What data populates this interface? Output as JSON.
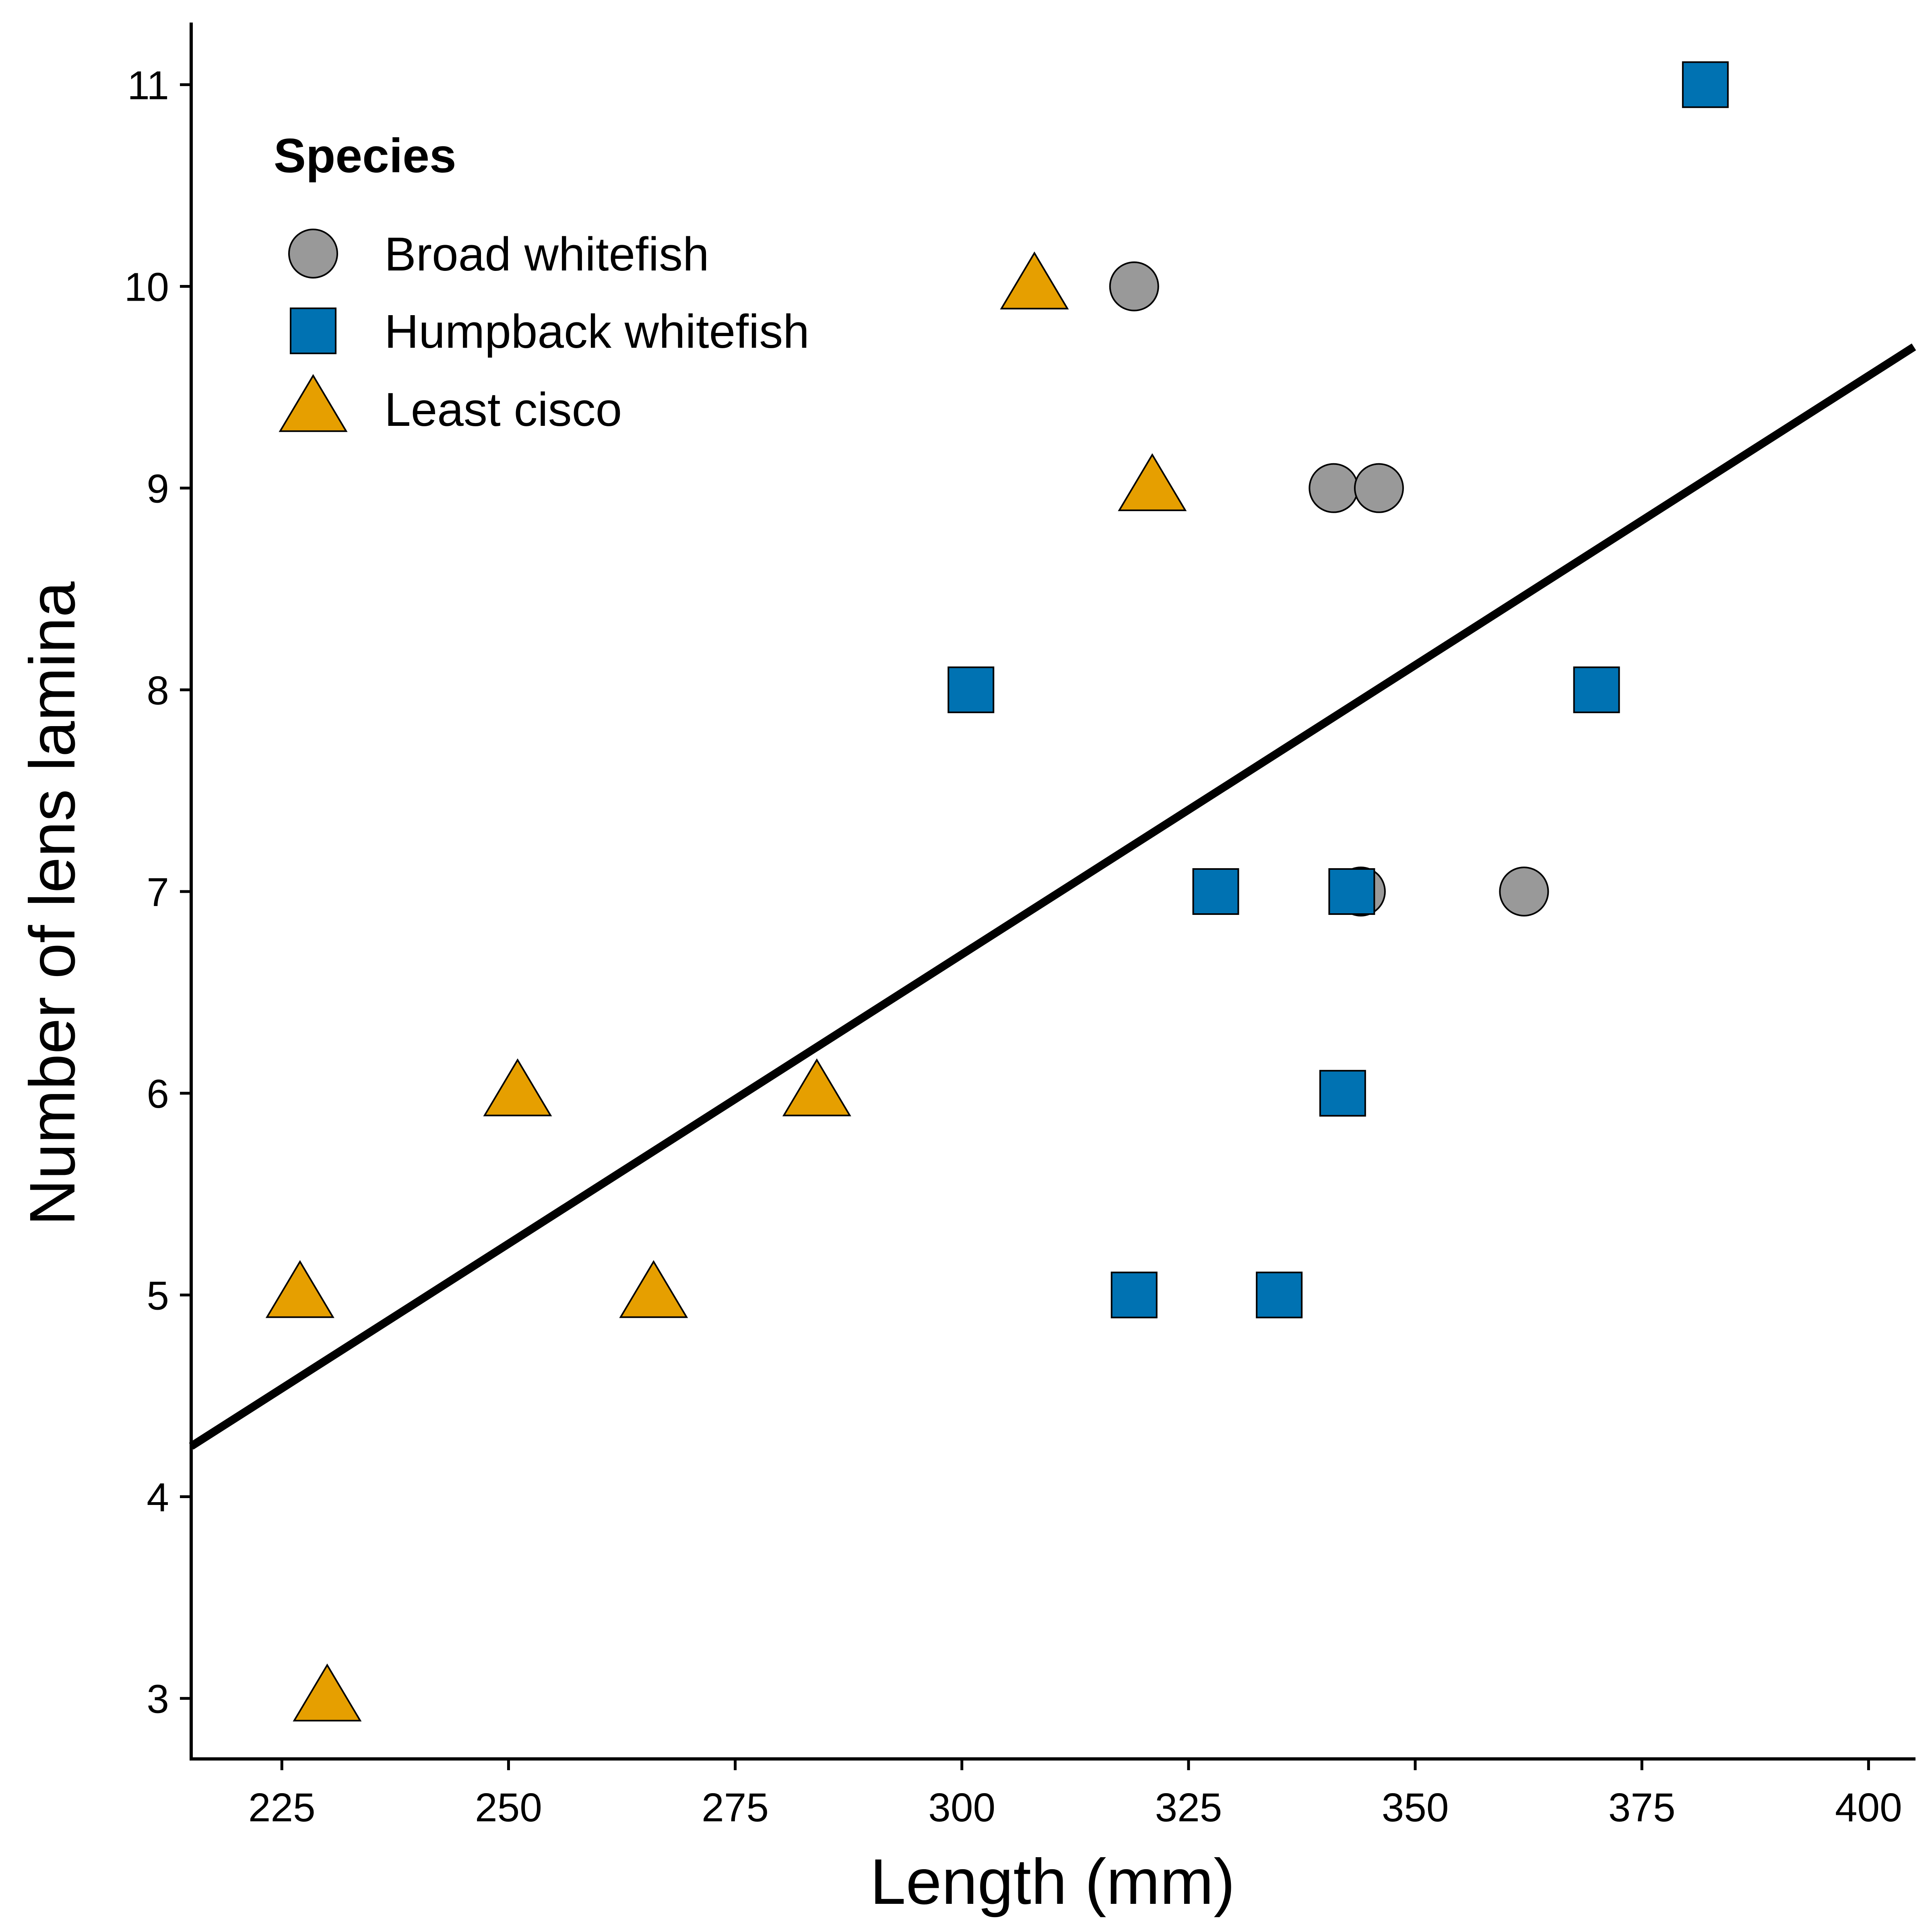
{
  "chart_data": {
    "type": "scatter",
    "title": "",
    "xlabel": "Length (mm)",
    "ylabel": "Number of lens lamina",
    "xlim": [
      215,
      405
    ],
    "ylim": [
      2.7,
      11.3
    ],
    "xticks": [
      225,
      250,
      275,
      300,
      325,
      350,
      375,
      400
    ],
    "yticks": [
      3,
      4,
      5,
      6,
      7,
      8,
      9,
      10,
      11
    ],
    "grid": false,
    "legend": {
      "title": "Species",
      "position": "top-left"
    },
    "series": [
      {
        "name": "Broad whitefish",
        "marker": "circle",
        "color": "#999999",
        "points": [
          {
            "x": 319,
            "y": 10
          },
          {
            "x": 341,
            "y": 9
          },
          {
            "x": 346,
            "y": 9
          },
          {
            "x": 344,
            "y": 7
          },
          {
            "x": 362,
            "y": 7
          }
        ]
      },
      {
        "name": "Humpback whitefish",
        "marker": "square",
        "color": "#0072B2",
        "points": [
          {
            "x": 382,
            "y": 11
          },
          {
            "x": 301,
            "y": 8
          },
          {
            "x": 370,
            "y": 8
          },
          {
            "x": 328,
            "y": 7
          },
          {
            "x": 343,
            "y": 7
          },
          {
            "x": 342,
            "y": 6
          },
          {
            "x": 319,
            "y": 5
          },
          {
            "x": 335,
            "y": 5
          }
        ]
      },
      {
        "name": "Least cisco",
        "marker": "triangle",
        "color": "#E69F00",
        "points": [
          {
            "x": 308,
            "y": 10
          },
          {
            "x": 321,
            "y": 9
          },
          {
            "x": 251,
            "y": 6
          },
          {
            "x": 284,
            "y": 6
          },
          {
            "x": 227,
            "y": 5
          },
          {
            "x": 266,
            "y": 5
          },
          {
            "x": 230,
            "y": 3
          }
        ]
      }
    ],
    "fit_line": {
      "x": [
        215,
        405
      ],
      "y": [
        4.25,
        9.7
      ]
    }
  }
}
